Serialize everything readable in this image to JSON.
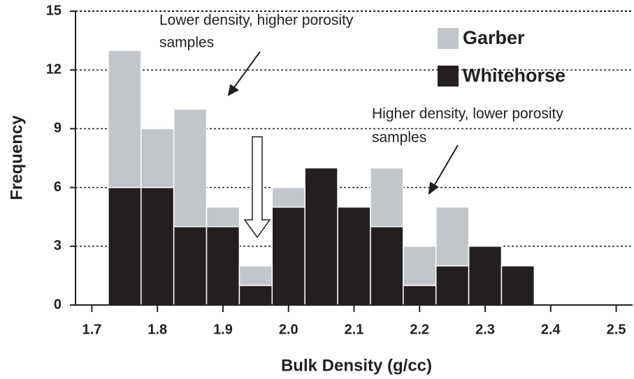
{
  "chart_data": {
    "type": "histogram",
    "xlabel": "Bulk Density (g/cc)",
    "ylabel": "Frequency",
    "bins": [
      1.725,
      1.775,
      1.825,
      1.875,
      1.925,
      1.975,
      2.025,
      2.075,
      2.125,
      2.175,
      2.225,
      2.275,
      2.325,
      2.375
    ],
    "series": [
      {
        "name": "Garber",
        "color": "#c2c6cb",
        "values": [
          7,
          3,
          6,
          1,
          1,
          1,
          0,
          0,
          3,
          2,
          3,
          0,
          0
        ]
      },
      {
        "name": "Whitehorse",
        "color": "#231f20",
        "values": [
          6,
          6,
          4,
          4,
          1,
          5,
          7,
          5,
          4,
          1,
          2,
          3,
          2
        ]
      }
    ],
    "stacked": true,
    "xlim": [
      1.675,
      2.525
    ],
    "xticks": [
      1.7,
      1.8,
      1.9,
      {
        "value": 2.0,
        "label": "2.0"
      },
      2.1,
      2.2,
      2.3,
      2.4,
      2.5
    ],
    "ylim": [
      0,
      15
    ],
    "yticks": [
      0,
      3,
      6,
      9,
      12,
      15
    ],
    "grid": true,
    "annotations": [
      {
        "lines": [
          "Lower density, higher porosity",
          "samples"
        ]
      },
      {
        "lines": [
          "Higher density, lower porosity",
          "samples"
        ]
      }
    ]
  }
}
